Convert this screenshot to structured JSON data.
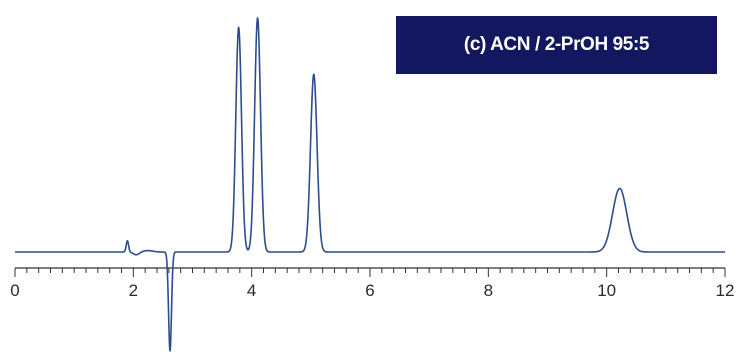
{
  "chart_data": {
    "type": "line",
    "title": "",
    "annotation": "(c)  ACN / 2-PrOH 95:5",
    "xlabel": "",
    "ylabel": "",
    "xlim": [
      0,
      12
    ],
    "ylim": [
      -0.42,
      1.02
    ],
    "x_ticks": [
      "0",
      "2",
      "4",
      "6",
      "8",
      "10",
      "12"
    ],
    "grid": false,
    "colors": {
      "trace": "#2d4d8b",
      "axis": "#333333",
      "label_bg": "#12175f",
      "label_text": "#ffffff"
    },
    "series": [
      {
        "baseline": 0.0,
        "peaks": [
          {
            "x": 1.9,
            "y": 0.048,
            "width": 0.02
          },
          {
            "x": 2.62,
            "y": -0.42,
            "width": 0.025
          },
          {
            "x": 3.78,
            "y": 0.955,
            "width": 0.048
          },
          {
            "x": 4.1,
            "y": 0.995,
            "width": 0.05
          },
          {
            "x": 5.05,
            "y": 0.755,
            "width": 0.055
          },
          {
            "x": 10.22,
            "y": 0.27,
            "width": 0.12
          }
        ]
      }
    ]
  }
}
